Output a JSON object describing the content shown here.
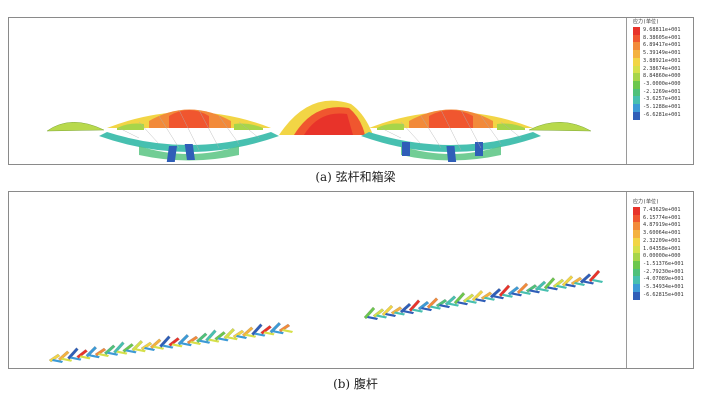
{
  "figure": {
    "caption_a": "(a) 弦杆和箱梁",
    "caption_b": "(b) 腹杆"
  },
  "legend_a": {
    "title": "应力(单位)",
    "labels": [
      "9.68811e+001",
      "8.38605e+001",
      "6.89417e+001",
      "5.39149e+001",
      "3.88921e+001",
      "2.38674e+001",
      "8.84860e+000",
      "-3.0000e+000",
      "-2.1269e+001",
      "-3.6257e+001",
      "-5.1288e+001",
      "-6.6281e+001"
    ],
    "colors": [
      "#e8332a",
      "#f0562f",
      "#f28a3a",
      "#f4b23f",
      "#f2d545",
      "#d6e04a",
      "#a7d54a",
      "#6cc74d",
      "#4fc17a",
      "#47c0b0",
      "#3c9ad6",
      "#2f5eb8"
    ]
  },
  "legend_b": {
    "title": "应力(单位)",
    "labels": [
      "7.43629e+001",
      "6.15774e+001",
      "4.87919e+001",
      "3.60064e+001",
      "2.32209e+001",
      "1.04358e+001",
      "0.00000e+000",
      "-1.51376e+001",
      "-2.79230e+001",
      "-4.07089e+001",
      "-5.34934e+001",
      "-6.62815e+001"
    ],
    "colors": [
      "#e8332a",
      "#f0562f",
      "#f28a3a",
      "#f4b23f",
      "#f2d545",
      "#d6e04a",
      "#a7d54a",
      "#6cc74d",
      "#4fc17a",
      "#47c0b0",
      "#3c9ad6",
      "#2f5eb8"
    ]
  }
}
